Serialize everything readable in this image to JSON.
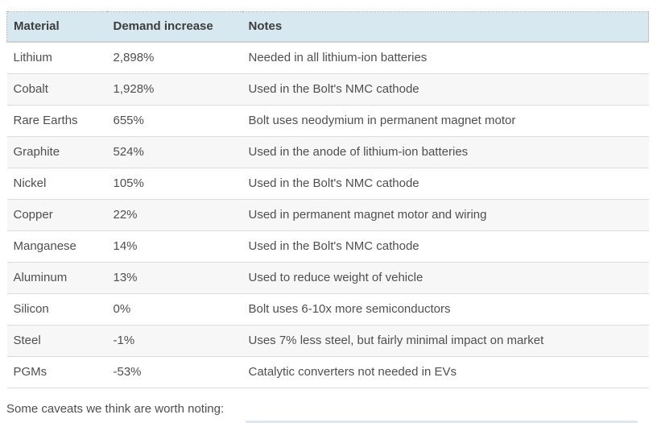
{
  "table": {
    "columns": [
      {
        "label": "Material"
      },
      {
        "label": "Demand increase"
      },
      {
        "label": "Notes"
      }
    ],
    "rows": [
      {
        "material": "Lithium",
        "demand_increase": "2,898%",
        "notes": "Needed in all lithium-ion batteries"
      },
      {
        "material": "Cobalt",
        "demand_increase": "1,928%",
        "notes": "Used in the Bolt's NMC cathode"
      },
      {
        "material": "Rare Earths",
        "demand_increase": "655%",
        "notes": "Bolt uses neodymium in permanent magnet motor"
      },
      {
        "material": "Graphite",
        "demand_increase": "524%",
        "notes": "Used in the anode of lithium-ion batteries"
      },
      {
        "material": "Nickel",
        "demand_increase": "105%",
        "notes": "Used in the Bolt's NMC cathode"
      },
      {
        "material": "Copper",
        "demand_increase": "22%",
        "notes": "Used in permanent magnet motor and wiring"
      },
      {
        "material": "Manganese",
        "demand_increase": "14%",
        "notes": "Used in the Bolt's NMC cathode"
      },
      {
        "material": "Aluminum",
        "demand_increase": "13%",
        "notes": "Used to reduce weight of vehicle"
      },
      {
        "material": "Silicon",
        "demand_increase": "0%",
        "notes": "Bolt uses 6-10x more semiconductors"
      },
      {
        "material": "Steel",
        "demand_increase": "-1%",
        "notes": "Uses 7% less steel, but fairly minimal impact on market"
      },
      {
        "material": "PGMs",
        "demand_increase": "-53%",
        "notes": "Catalytic converters not needed in EVs"
      }
    ]
  },
  "footer": {
    "caveats_intro": "Some caveats we think are worth noting:"
  },
  "colors": {
    "header_background": "#d7e8f1",
    "header_text": "#3d3d3d",
    "body_text": "#4f4f4f",
    "alt_row_background": "#f7f7f7",
    "row_border": "#dcdcdc",
    "header_bottom_border": "#d0d0d0",
    "table_top_dotted_border": "#a8a8a8"
  }
}
